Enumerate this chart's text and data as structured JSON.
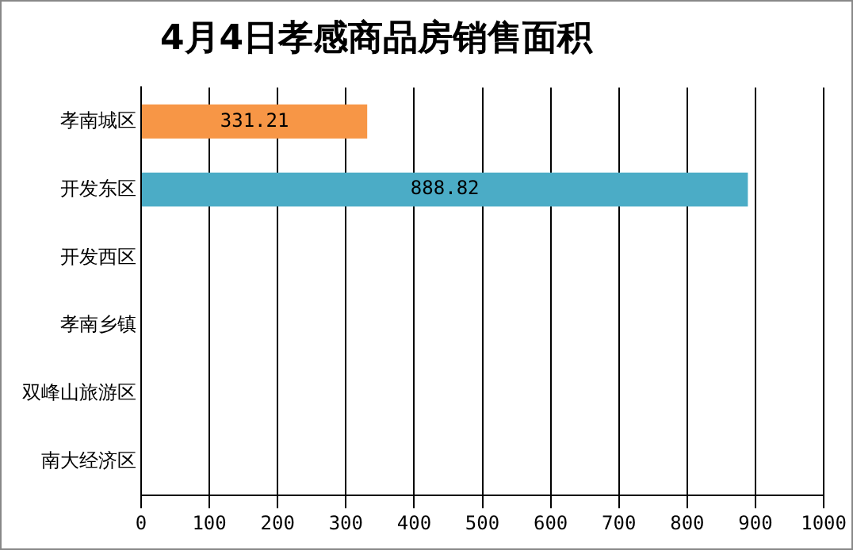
{
  "chart_data": {
    "type": "bar",
    "orientation": "horizontal",
    "title": "4月4日孝感商品房销售面积",
    "categories": [
      "孝南城区",
      "开发东区",
      "开发西区",
      "孝南乡镇",
      "双峰山旅游区",
      "南大经济区"
    ],
    "values": [
      331.21,
      888.82,
      null,
      null,
      null,
      null
    ],
    "colors": [
      "#f79646",
      "#4bacc6",
      "#4bacc6",
      "#4bacc6",
      "#4bacc6",
      "#4bacc6"
    ],
    "xlim": [
      0,
      1000
    ],
    "xticks": [
      0,
      100,
      200,
      300,
      400,
      500,
      600,
      700,
      800,
      900,
      1000
    ],
    "grid": "x",
    "data_labels": true,
    "legend": false
  }
}
